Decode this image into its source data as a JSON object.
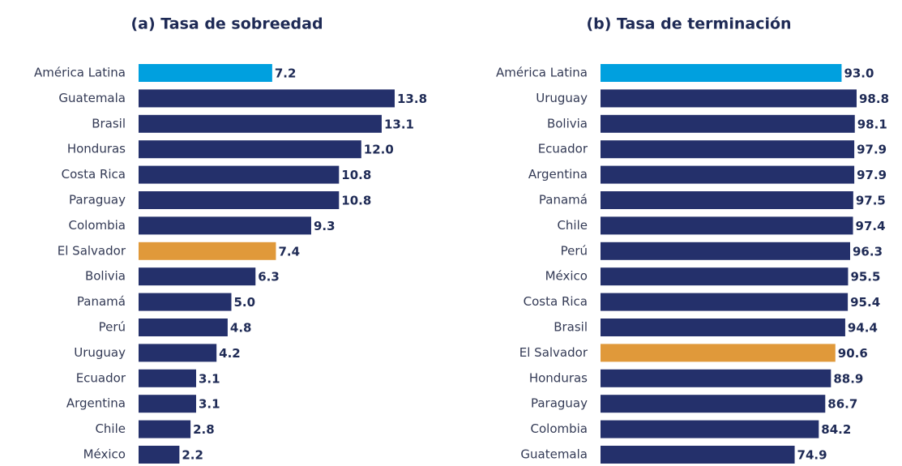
{
  "chart_data": [
    {
      "type": "bar",
      "orientation": "horizontal",
      "title": "(a) Tasa de sobreedad",
      "categories": [
        "América Latina",
        "Guatemala",
        "Brasil",
        "Honduras",
        "Costa Rica",
        "Paraguay",
        "Colombia",
        "El Salvador",
        "Bolivia",
        "Panamá",
        "Perú",
        "Uruguay",
        "Ecuador",
        "Argentina",
        "Chile",
        "México"
      ],
      "values": [
        7.2,
        13.8,
        13.1,
        12.0,
        10.8,
        10.8,
        9.3,
        7.4,
        6.3,
        5.0,
        4.8,
        4.2,
        3.1,
        3.1,
        2.8,
        2.2
      ],
      "value_labels": [
        "7.2",
        "13.8",
        "13.1",
        "12.0",
        "10.8",
        "10.8",
        "9.3",
        "7.4",
        "6.3",
        "5.0",
        "4.8",
        "4.2",
        "3.1",
        "3.1",
        "2.8",
        "2.2"
      ],
      "colors": [
        "#00a0df",
        "#24306b",
        "#24306b",
        "#24306b",
        "#24306b",
        "#24306b",
        "#24306b",
        "#e0993a",
        "#24306b",
        "#24306b",
        "#24306b",
        "#24306b",
        "#24306b",
        "#24306b",
        "#24306b",
        "#24306b"
      ]
    },
    {
      "type": "bar",
      "orientation": "horizontal",
      "title": "(b) Tasa de terminación",
      "categories": [
        "América Latina",
        "Uruguay",
        "Bolivia",
        "Ecuador",
        "Argentina",
        "Panamá",
        "Chile",
        "Perú",
        "México",
        "Costa Rica",
        "Brasil",
        "El Salvador",
        "Honduras",
        "Paraguay",
        "Colombia",
        "Guatemala"
      ],
      "values": [
        93.0,
        98.8,
        98.1,
        97.9,
        97.9,
        97.5,
        97.4,
        96.3,
        95.5,
        95.4,
        94.4,
        90.6,
        88.9,
        86.7,
        84.2,
        74.9
      ],
      "value_labels": [
        "93.0",
        "98.8",
        "98.1",
        "97.9",
        "97.9",
        "97.5",
        "97.4",
        "96.3",
        "95.5",
        "95.4",
        "94.4",
        "90.6",
        "88.9",
        "86.7",
        "84.2",
        "74.9"
      ],
      "colors": [
        "#00a0df",
        "#24306b",
        "#24306b",
        "#24306b",
        "#24306b",
        "#24306b",
        "#24306b",
        "#24306b",
        "#24306b",
        "#24306b",
        "#24306b",
        "#e0993a",
        "#24306b",
        "#24306b",
        "#24306b",
        "#24306b"
      ]
    }
  ]
}
